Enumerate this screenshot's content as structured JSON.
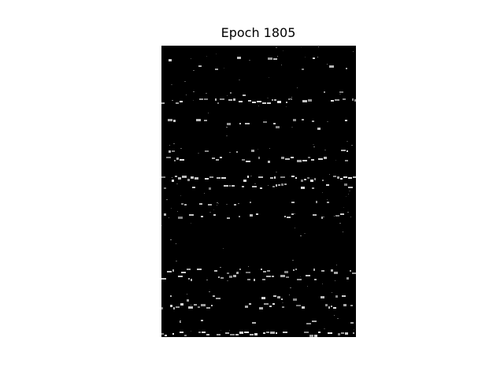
{
  "figure": {
    "title": "Epoch 1805"
  },
  "image": {
    "description_kind": "grayscale-generated-piano-roll",
    "background_color": "#000000",
    "foreground_color": "#ffffff"
  }
}
